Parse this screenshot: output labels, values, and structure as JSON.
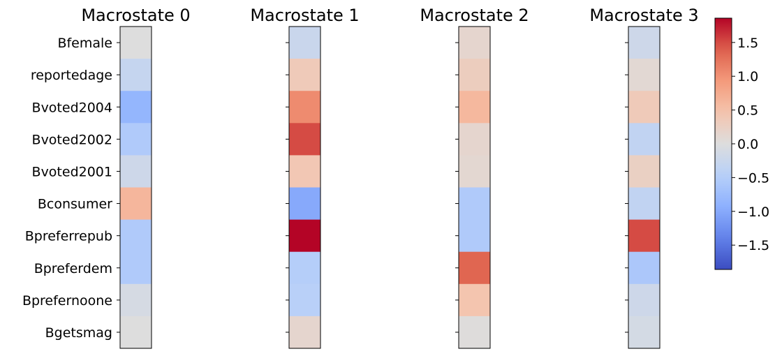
{
  "chart_data": {
    "type": "heatmap",
    "colormap": "coolwarm",
    "vmin": -1.86,
    "vmax": 1.86,
    "row_labels": [
      "Bfemale",
      "reportedage",
      "Bvoted2004",
      "Bvoted2002",
      "Bvoted2001",
      "Bconsumer",
      "Bpreferrepub",
      "Bpreferdem",
      "Bprefernoone",
      "Bgetsmag"
    ],
    "panels": [
      {
        "title": "Macrostate 0",
        "values": [
          0.0,
          -0.3,
          -0.85,
          -0.55,
          -0.2,
          0.62,
          -0.55,
          -0.55,
          -0.1,
          0.0
        ]
      },
      {
        "title": "Macrostate 1",
        "values": [
          -0.25,
          0.35,
          1.05,
          1.5,
          0.4,
          -1.0,
          1.86,
          -0.5,
          -0.45,
          0.15
        ]
      },
      {
        "title": "Macrostate 2",
        "values": [
          0.15,
          0.3,
          0.6,
          0.15,
          0.12,
          -0.55,
          -0.55,
          1.35,
          0.45,
          0.02
        ]
      },
      {
        "title": "Macrostate 3",
        "values": [
          -0.2,
          0.1,
          0.35,
          -0.35,
          0.25,
          -0.35,
          1.5,
          -0.6,
          -0.2,
          -0.12
        ]
      }
    ],
    "colorbar": {
      "ticks": [
        1.5,
        1.0,
        0.5,
        0.0,
        -0.5,
        -1.0,
        -1.5
      ],
      "tick_labels": [
        "1.5",
        "1.0",
        "0.5",
        "0.0",
        "−0.5",
        "−1.0",
        "−1.5"
      ]
    }
  }
}
